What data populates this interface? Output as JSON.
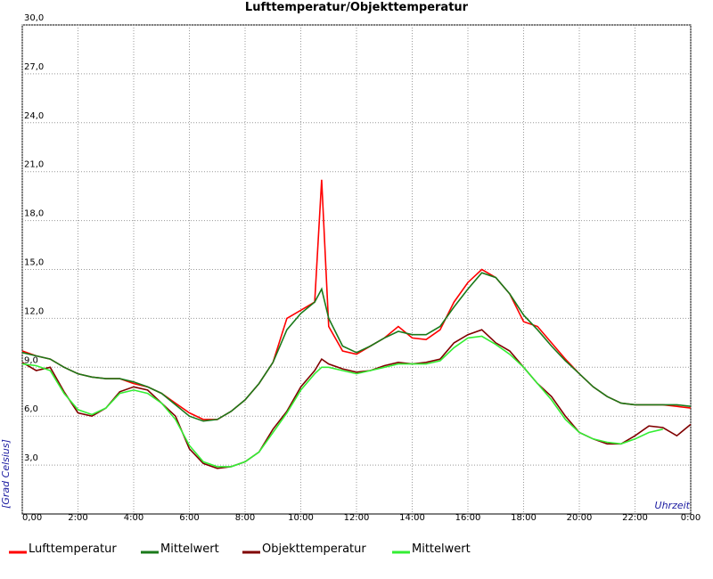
{
  "chart_data": {
    "type": "line",
    "title": "Lufttemperatur/Objekttemperatur",
    "y_label": "[Grad Celsius]",
    "x_label": "Uhrzeit",
    "x": [
      0,
      0.5,
      1,
      1.5,
      2,
      2.5,
      3,
      3.5,
      4,
      4.5,
      5,
      5.5,
      6,
      6.5,
      7,
      7.5,
      8,
      8.5,
      9,
      9.5,
      10,
      10.5,
      10.75,
      11,
      11.5,
      12,
      12.5,
      13,
      13.5,
      14,
      14.5,
      15,
      15.5,
      16,
      16.5,
      17,
      17.5,
      18,
      18.5,
      19,
      19.5,
      20,
      20.5,
      21,
      21.5,
      22,
      22.5,
      23,
      23.5,
      24
    ],
    "xlim": [
      0,
      24
    ],
    "xticks": [
      {
        "value": 0,
        "label": "0,00"
      },
      {
        "value": 2,
        "label": "2:00"
      },
      {
        "value": 4,
        "label": "4:00"
      },
      {
        "value": 6,
        "label": "6:00"
      },
      {
        "value": 8,
        "label": "8:00"
      },
      {
        "value": 10,
        "label": "10:00"
      },
      {
        "value": 12,
        "label": "12:00"
      },
      {
        "value": 14,
        "label": "14:00"
      },
      {
        "value": 16,
        "label": "16:00"
      },
      {
        "value": 18,
        "label": "18:00"
      },
      {
        "value": 20,
        "label": "20:00"
      },
      {
        "value": 22,
        "label": "22:00"
      },
      {
        "value": 24,
        "label": "0:00"
      }
    ],
    "ylim": [
      0,
      30
    ],
    "yticks": [
      {
        "value": 3,
        "label": "3,0"
      },
      {
        "value": 6,
        "label": "6,0"
      },
      {
        "value": 9,
        "label": "9,0"
      },
      {
        "value": 12,
        "label": "12,0"
      },
      {
        "value": 15,
        "label": "15,0"
      },
      {
        "value": 18,
        "label": "18,0"
      },
      {
        "value": 21,
        "label": "21,0"
      },
      {
        "value": 24,
        "label": "24,0"
      },
      {
        "value": 27,
        "label": "27,0"
      },
      {
        "value": 30,
        "label": "30,0"
      }
    ],
    "grid": true,
    "series": [
      {
        "name": "Lufttemperatur",
        "color": "#ff0000",
        "values": [
          10.0,
          9.7,
          9.5,
          9.0,
          8.6,
          8.4,
          8.3,
          8.3,
          8.0,
          7.8,
          7.4,
          6.8,
          6.2,
          5.8,
          5.8,
          6.3,
          7.0,
          8.0,
          9.3,
          12.0,
          12.5,
          13.0,
          20.5,
          11.5,
          10.0,
          9.8,
          10.3,
          10.8,
          11.5,
          10.8,
          10.7,
          11.3,
          13.0,
          14.2,
          15.0,
          14.5,
          13.5,
          11.8,
          11.5,
          10.5,
          9.5,
          8.6,
          7.8,
          7.2,
          6.8,
          6.7,
          6.7,
          6.7,
          6.6,
          6.5
        ]
      },
      {
        "name": "Mittelwert",
        "color": "#1a7a1a",
        "values": [
          9.9,
          9.7,
          9.5,
          9.0,
          8.6,
          8.4,
          8.3,
          8.3,
          8.1,
          7.8,
          7.4,
          6.7,
          6.0,
          5.7,
          5.8,
          6.3,
          7.0,
          8.0,
          9.3,
          11.3,
          12.3,
          13.0,
          13.8,
          12.0,
          10.3,
          9.9,
          10.3,
          10.8,
          11.2,
          11.0,
          11.0,
          11.5,
          12.7,
          13.8,
          14.8,
          14.5,
          13.5,
          12.2,
          11.3,
          10.3,
          9.4,
          8.6,
          7.8,
          7.2,
          6.8,
          6.7,
          6.7,
          6.7,
          6.7,
          6.6
        ]
      },
      {
        "name": "Objekttemperatur",
        "color": "#800000",
        "values": [
          9.3,
          8.8,
          9.0,
          7.5,
          6.2,
          6.0,
          6.5,
          7.5,
          7.8,
          7.6,
          6.8,
          6.0,
          4.0,
          3.1,
          2.8,
          2.9,
          3.2,
          3.8,
          5.2,
          6.3,
          7.8,
          8.8,
          9.5,
          9.2,
          8.9,
          8.7,
          8.8,
          9.1,
          9.3,
          9.2,
          9.3,
          9.5,
          10.5,
          11.0,
          11.3,
          10.5,
          10.0,
          9.0,
          8.0,
          7.2,
          6.0,
          5.0,
          4.6,
          4.3,
          4.3,
          4.8,
          5.4,
          5.3,
          4.8,
          5.5
        ]
      },
      {
        "name": "Mittelwert",
        "color": "#33ee33",
        "values": [
          9.2,
          9.1,
          8.8,
          7.4,
          6.4,
          6.1,
          6.5,
          7.4,
          7.6,
          7.4,
          6.8,
          5.8,
          4.2,
          3.2,
          2.9,
          2.9,
          3.2,
          3.8,
          5.0,
          6.2,
          7.6,
          8.6,
          9.0,
          9.0,
          8.8,
          8.6,
          8.8,
          9.0,
          9.2,
          9.2,
          9.2,
          9.4,
          10.2,
          10.8,
          10.9,
          10.4,
          9.8,
          9.0,
          8.0,
          7.0,
          5.8,
          5.0,
          4.6,
          4.4,
          4.3,
          4.6,
          5.0,
          5.2,
          null,
          null
        ]
      }
    ]
  }
}
